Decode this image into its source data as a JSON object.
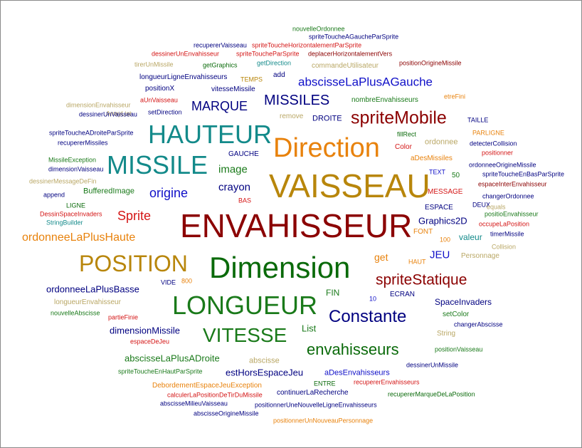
{
  "colors": {
    "green": "#1a7a1a",
    "orange": "#e8820c",
    "darkred": "#8b0000",
    "teal": "#138a8a",
    "navy": "#000080",
    "gold": "#b8860b",
    "blue": "#1010c8",
    "red": "#d41515",
    "khaki": "#b9a765",
    "darkgreen": "#0a6a0a",
    "olive": "#808000"
  },
  "words": [
    "nouvelleOrdonnee",
    "spriteToucheAGaucheParSprite",
    "recupererVaisseau",
    "spriteToucheHorizontalementParSprite",
    "dessinerUnEnvahisseur",
    "spriteToucheParSprite",
    "deplacerHorizontalementVers",
    "tirerUnMissile",
    "getGraphics",
    "getDirection",
    "commandeUtilisateur",
    "positionOrigineMissile",
    "longueurLigneEnvahisseurs",
    "add",
    "TEMPS",
    "abscisseLaPlusAGauche",
    "positionX",
    "vitesseMissile",
    "dimensionEnvahisseur",
    "aUnVaisseau",
    "MISSILES",
    "nombreEnvahisseurs",
    "etreFini",
    "ArrayList",
    "MARQUE",
    "setDirection",
    "dessinerUnVaisseau",
    "remove",
    "DROITE",
    "spriteMobile",
    "TAILLE",
    "spriteToucheADroiteParSprite",
    "HAUTEUR",
    "PARLIGNE",
    "fillRect",
    "recupererMissiles",
    "detecterCollision",
    "ordonnee",
    "Direction",
    "Color",
    "positionner",
    "MissileException",
    "GAUCHE",
    "aDesMissiles",
    "dimensionVaisseau",
    "MISSILE",
    "ordonneeOrigineMissile",
    "image",
    "TEXT",
    "dessinerMessageDeFin",
    "VAISSEAU",
    "50",
    "spriteToucheEnBasParSprite",
    "espaceInterEnvahisseur",
    "append",
    "crayon",
    "BufferedImage",
    "origine",
    "changerOrdonnee",
    "MESSAGE",
    "BAS",
    "LIGNE",
    "DEUX",
    "ESPACE",
    "DessinSpaceInvaders",
    "positioEnvahisseur",
    "Sprite",
    "equals",
    "StringBuilder",
    "ENVAHISSEUR",
    "Graphics2D",
    "occupeLaPosition",
    "FONT",
    "ordonneeLaPlusHaute",
    "timerMissile",
    "valeur",
    "100",
    "Collision",
    "get",
    "JEU",
    "HAUT",
    "Personnage",
    "POSITION",
    "Dimension",
    "spriteStatique",
    "800",
    "VIDE",
    "ordonneeLaPlusBasse",
    "longueurEnvahisseur",
    "FIN",
    "ECRAN",
    "10",
    "SpaceInvaders",
    "LONGUEUR",
    "Constante",
    "partieFinie",
    "setColor",
    "nouvelleAbscisse",
    "changerAbscisse",
    "List",
    "dimensionMissile",
    "String",
    "VITESSE",
    "espaceDeJeu",
    "envahisseurs",
    "positionVaisseau",
    "abscisseLaPlusADroite",
    "abscisse",
    "dessinerUnMissile",
    "spriteToucheEnHautParSprite",
    "estHorsEspaceJeu",
    "aDesEnvahisseurs",
    "DebordementEspaceJeuException",
    "ENTRE",
    "recupererEnvahisseurs",
    "calculerLaPositionDeTirDuMissile",
    "continuerLaRecherche",
    "recupererMarqueDeLaPosition",
    "abscisseMilieuVaisseau",
    "positionnerUneNouvelleLigneEnvahisseurs",
    "abscisseOrigineMissile",
    "positionnerUnNouveauPersonnage"
  ]
}
